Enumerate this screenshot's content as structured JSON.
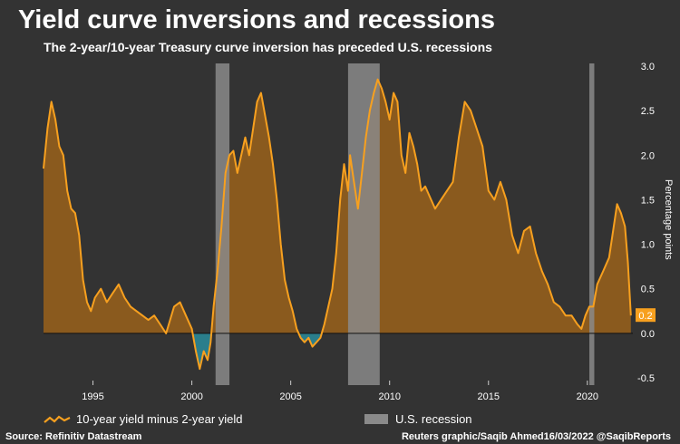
{
  "title": "Yield curve inversions and recessions",
  "subtitle": "The 2-year/10-year Treasury curve inversion has preceded U.S. recessions",
  "legend": {
    "series_label": "10-year yield minus 2-year yield",
    "recession_label": "U.S. recession"
  },
  "footer": {
    "source": "Source: Refinitiv Datastream",
    "credit": "Reuters graphic/Saqib Ahmed16/03/2022 @SaqibReports"
  },
  "colors": {
    "background": "#333333",
    "line": "#f7a01f",
    "positive_fill": "#8a5a1e",
    "negative_fill": "#2a7e8c",
    "recession": "#8a8a8a",
    "end_label_bg": "#f7a01f"
  },
  "chart_data": {
    "type": "area",
    "ylabel": "Percentage points",
    "ylim": [
      -0.5,
      3.0
    ],
    "yticks": [
      "3.0",
      "2.5",
      "2.0",
      "1.5",
      "1.0",
      "0.5",
      "0.0",
      "-0.5"
    ],
    "xlim": [
      1992.5,
      2022.3
    ],
    "xticks": [
      "1995",
      "2000",
      "2005",
      "2010",
      "2015",
      "2020"
    ],
    "end_label": "0.2",
    "recessions": [
      {
        "start": 2001.2,
        "end": 2001.9
      },
      {
        "start": 2007.9,
        "end": 2009.5
      },
      {
        "start": 2020.1,
        "end": 2020.35
      }
    ],
    "series": [
      {
        "name": "10-year yield minus 2-year yield",
        "x": [
          1992.5,
          1992.7,
          1992.9,
          1993.1,
          1993.3,
          1993.5,
          1993.7,
          1993.9,
          1994.1,
          1994.3,
          1994.5,
          1994.7,
          1994.9,
          1995.1,
          1995.4,
          1995.7,
          1996.0,
          1996.3,
          1996.6,
          1996.9,
          1997.2,
          1997.5,
          1997.8,
          1998.1,
          1998.4,
          1998.7,
          1998.9,
          1999.1,
          1999.4,
          1999.7,
          2000.0,
          2000.2,
          2000.4,
          2000.6,
          2000.8,
          2000.95,
          2001.1,
          2001.3,
          2001.5,
          2001.7,
          2001.9,
          2002.1,
          2002.3,
          2002.5,
          2002.7,
          2002.9,
          2003.1,
          2003.3,
          2003.5,
          2003.7,
          2003.9,
          2004.1,
          2004.3,
          2004.5,
          2004.7,
          2004.9,
          2005.1,
          2005.3,
          2005.5,
          2005.7,
          2005.9,
          2006.1,
          2006.3,
          2006.5,
          2006.7,
          2006.9,
          2007.1,
          2007.3,
          2007.5,
          2007.7,
          2007.9,
          2008.0,
          2008.2,
          2008.4,
          2008.6,
          2008.8,
          2009.0,
          2009.2,
          2009.4,
          2009.6,
          2009.8,
          2010.0,
          2010.2,
          2010.4,
          2010.6,
          2010.8,
          2011.0,
          2011.2,
          2011.4,
          2011.6,
          2011.8,
          2012.0,
          2012.3,
          2012.6,
          2012.9,
          2013.2,
          2013.5,
          2013.8,
          2014.1,
          2014.4,
          2014.7,
          2015.0,
          2015.3,
          2015.6,
          2015.9,
          2016.2,
          2016.5,
          2016.8,
          2017.1,
          2017.4,
          2017.7,
          2018.0,
          2018.3,
          2018.6,
          2018.9,
          2019.2,
          2019.5,
          2019.7,
          2019.9,
          2020.1,
          2020.3,
          2020.5,
          2020.8,
          2021.1,
          2021.3,
          2021.5,
          2021.7,
          2021.9,
          2022.05,
          2022.2
        ],
        "values": [
          1.85,
          2.3,
          2.6,
          2.4,
          2.1,
          2.0,
          1.6,
          1.4,
          1.35,
          1.1,
          0.6,
          0.35,
          0.25,
          0.4,
          0.5,
          0.35,
          0.45,
          0.55,
          0.4,
          0.3,
          0.25,
          0.2,
          0.15,
          0.2,
          0.1,
          0.0,
          0.15,
          0.3,
          0.35,
          0.2,
          0.05,
          -0.2,
          -0.4,
          -0.2,
          -0.3,
          -0.1,
          0.3,
          0.7,
          1.2,
          1.8,
          2.0,
          2.05,
          1.8,
          2.0,
          2.2,
          2.0,
          2.3,
          2.6,
          2.7,
          2.45,
          2.2,
          1.9,
          1.5,
          1.0,
          0.6,
          0.4,
          0.25,
          0.05,
          -0.05,
          -0.1,
          -0.05,
          -0.15,
          -0.1,
          -0.05,
          0.1,
          0.3,
          0.5,
          0.9,
          1.5,
          1.9,
          1.6,
          2.0,
          1.7,
          1.4,
          1.8,
          2.2,
          2.5,
          2.7,
          2.85,
          2.75,
          2.6,
          2.4,
          2.7,
          2.6,
          2.0,
          1.8,
          2.25,
          2.1,
          1.9,
          1.6,
          1.65,
          1.55,
          1.4,
          1.5,
          1.6,
          1.7,
          2.2,
          2.6,
          2.5,
          2.3,
          2.1,
          1.6,
          1.5,
          1.7,
          1.5,
          1.1,
          0.9,
          1.15,
          1.2,
          0.9,
          0.7,
          0.55,
          0.35,
          0.3,
          0.2,
          0.2,
          0.1,
          0.05,
          0.2,
          0.3,
          0.3,
          0.55,
          0.7,
          0.85,
          1.15,
          1.45,
          1.35,
          1.2,
          0.8,
          0.2
        ]
      }
    ]
  }
}
